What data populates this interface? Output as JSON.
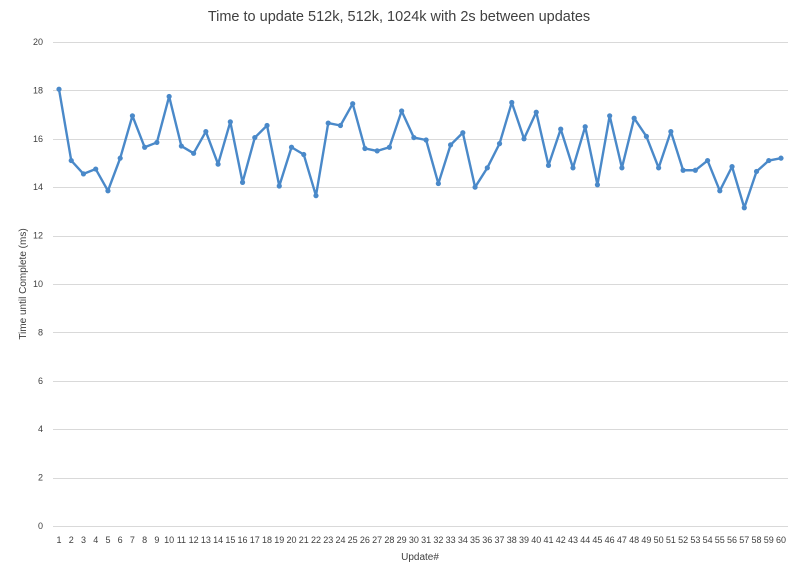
{
  "chart_data": {
    "type": "line",
    "title": "Time to update 512k, 512k, 1024k with 2s between updates",
    "xlabel": "Update#",
    "ylabel": "Time until Complete (ms)",
    "ylim": [
      0,
      20
    ],
    "ytick_step": 2,
    "grid": true,
    "legend": "none",
    "colors": {
      "series": "#4a89c9",
      "grid": "#d9d9d9",
      "text": "#404040"
    },
    "categories": [
      "1",
      "2",
      "3",
      "4",
      "5",
      "6",
      "7",
      "8",
      "9",
      "10",
      "11",
      "12",
      "13",
      "14",
      "15",
      "16",
      "17",
      "18",
      "19",
      "20",
      "21",
      "22",
      "23",
      "24",
      "25",
      "26",
      "27",
      "28",
      "29",
      "30",
      "31",
      "32",
      "33",
      "34",
      "35",
      "36",
      "37",
      "38",
      "39",
      "40",
      "41",
      "42",
      "43",
      "44",
      "45",
      "46",
      "47",
      "48",
      "49",
      "50",
      "51",
      "52",
      "53",
      "54",
      "55",
      "56",
      "57",
      "58",
      "59",
      "60"
    ],
    "series": [
      {
        "values": [
          18.05,
          15.1,
          14.55,
          14.75,
          13.85,
          15.2,
          16.95,
          15.65,
          15.85,
          17.75,
          15.7,
          15.4,
          16.3,
          14.95,
          16.7,
          14.2,
          16.05,
          16.55,
          14.05,
          15.65,
          15.35,
          13.65,
          16.65,
          16.55,
          17.45,
          15.6,
          15.5,
          15.65,
          17.15,
          16.05,
          15.95,
          14.15,
          15.75,
          16.25,
          14.0,
          14.8,
          15.8,
          17.5,
          16.0,
          17.1,
          14.9,
          16.4,
          14.8,
          16.5,
          14.1,
          16.95,
          14.8,
          16.85,
          16.1,
          14.8,
          16.3,
          14.7,
          14.7,
          15.1,
          13.85,
          14.85,
          13.15,
          14.65,
          15.1,
          15.2
        ]
      }
    ]
  }
}
